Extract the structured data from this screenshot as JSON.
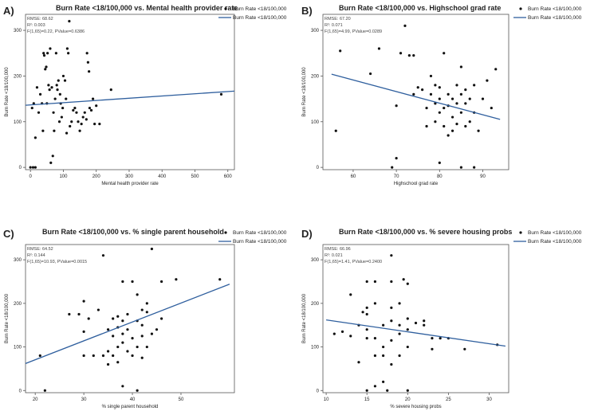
{
  "colors": {
    "point": "#111111",
    "fit": "#2f5f9e",
    "axis": "#555555",
    "text": "#222222"
  },
  "chart_data": [
    {
      "panel_label": "A)",
      "type": "scatter",
      "title": "Burn Rate <18/100,000 vs. Mental health provider rate",
      "xlabel": "Mental health provider rate",
      "ylabel": "Burn Rate <18/100,000",
      "xlim": [
        -15,
        620
      ],
      "ylim": [
        -5,
        335
      ],
      "xticks": [
        0,
        100,
        200,
        300,
        400,
        500,
        600
      ],
      "yticks": [
        0,
        100,
        200,
        300
      ],
      "stats": [
        "RMSE: 68.62",
        "R²: 0.003",
        "F(1,65)=0.22, PValue=0.6386"
      ],
      "legend": {
        "points": "Burn Rate <18/100,000",
        "line": "Burn Rate <18/100,000"
      },
      "fit": {
        "x": [
          -15,
          620
        ],
        "y": [
          136,
          167
        ]
      },
      "points": [
        [
          0,
          0
        ],
        [
          8,
          0
        ],
        [
          15,
          0
        ],
        [
          5,
          130
        ],
        [
          10,
          140
        ],
        [
          15,
          65
        ],
        [
          20,
          175
        ],
        [
          25,
          120
        ],
        [
          30,
          160
        ],
        [
          35,
          140
        ],
        [
          38,
          80
        ],
        [
          40,
          250
        ],
        [
          42,
          245
        ],
        [
          45,
          215
        ],
        [
          48,
          220
        ],
        [
          50,
          140
        ],
        [
          52,
          250
        ],
        [
          55,
          180
        ],
        [
          58,
          170
        ],
        [
          60,
          260
        ],
        [
          62,
          10
        ],
        [
          65,
          175
        ],
        [
          68,
          25
        ],
        [
          70,
          120
        ],
        [
          72,
          80
        ],
        [
          75,
          150
        ],
        [
          78,
          250
        ],
        [
          80,
          180
        ],
        [
          82,
          170
        ],
        [
          85,
          190
        ],
        [
          88,
          100
        ],
        [
          90,
          160
        ],
        [
          92,
          140
        ],
        [
          95,
          110
        ],
        [
          98,
          130
        ],
        [
          100,
          200
        ],
        [
          105,
          190
        ],
        [
          108,
          150
        ],
        [
          110,
          75
        ],
        [
          112,
          260
        ],
        [
          115,
          250
        ],
        [
          118,
          320
        ],
        [
          120,
          90
        ],
        [
          125,
          100
        ],
        [
          130,
          125
        ],
        [
          135,
          130
        ],
        [
          140,
          120
        ],
        [
          145,
          100
        ],
        [
          150,
          80
        ],
        [
          155,
          95
        ],
        [
          160,
          110
        ],
        [
          165,
          120
        ],
        [
          170,
          105
        ],
        [
          172,
          250
        ],
        [
          175,
          230
        ],
        [
          178,
          210
        ],
        [
          180,
          130
        ],
        [
          185,
          125
        ],
        [
          190,
          150
        ],
        [
          195,
          95
        ],
        [
          200,
          135
        ],
        [
          210,
          95
        ],
        [
          245,
          170
        ],
        [
          580,
          160
        ]
      ]
    },
    {
      "panel_label": "B)",
      "type": "scatter",
      "title": "Burn Rate <18/100,000 vs. Highschool grad rate",
      "xlabel": "Highschool grad rate",
      "ylabel": "Burn Rate <18/100,000",
      "xlim": [
        53,
        96
      ],
      "ylim": [
        -5,
        335
      ],
      "xticks": [
        60,
        70,
        80,
        90
      ],
      "yticks": [
        0,
        100,
        200,
        300
      ],
      "stats": [
        "RMSE: 67.20",
        "R²: 0.071",
        "F(1,65)=4.99, PValue=0.0289"
      ],
      "legend": {
        "points": "Burn Rate <18/100,000",
        "line": "Burn Rate <18/100,000"
      },
      "fit": {
        "x": [
          55,
          94
        ],
        "y": [
          204,
          105
        ]
      },
      "points": [
        [
          56,
          80
        ],
        [
          57,
          255
        ],
        [
          64,
          205
        ],
        [
          66,
          260
        ],
        [
          69,
          0
        ],
        [
          70,
          20
        ],
        [
          70,
          135
        ],
        [
          71,
          250
        ],
        [
          72,
          310
        ],
        [
          73,
          245
        ],
        [
          74,
          245
        ],
        [
          74,
          160
        ],
        [
          75,
          175
        ],
        [
          76,
          170
        ],
        [
          77,
          130
        ],
        [
          77,
          90
        ],
        [
          78,
          200
        ],
        [
          78,
          160
        ],
        [
          79,
          140
        ],
        [
          79,
          180
        ],
        [
          79,
          100
        ],
        [
          80,
          175
        ],
        [
          80,
          150
        ],
        [
          80,
          120
        ],
        [
          80,
          10
        ],
        [
          81,
          250
        ],
        [
          81,
          130
        ],
        [
          81,
          90
        ],
        [
          82,
          160
        ],
        [
          82,
          135
        ],
        [
          82,
          70
        ],
        [
          83,
          150
        ],
        [
          83,
          110
        ],
        [
          83,
          80
        ],
        [
          84,
          180
        ],
        [
          84,
          140
        ],
        [
          84,
          95
        ],
        [
          85,
          220
        ],
        [
          85,
          160
        ],
        [
          85,
          120
        ],
        [
          85,
          0
        ],
        [
          86,
          170
        ],
        [
          86,
          140
        ],
        [
          86,
          90
        ],
        [
          87,
          150
        ],
        [
          87,
          100
        ],
        [
          88,
          180
        ],
        [
          88,
          120
        ],
        [
          88,
          0
        ],
        [
          89,
          80
        ],
        [
          90,
          150
        ],
        [
          91,
          190
        ],
        [
          92,
          130
        ],
        [
          93,
          215
        ]
      ]
    },
    {
      "panel_label": "C)",
      "type": "scatter",
      "title": "Burn Rate <18/100,000 vs. % single parent household",
      "xlabel": "% single parent household",
      "ylabel": "Burn Rate <18/100,000",
      "xlim": [
        18,
        61
      ],
      "ylim": [
        -5,
        335
      ],
      "xticks": [
        20,
        30,
        40,
        50
      ],
      "yticks": [
        0,
        100,
        200,
        300
      ],
      "stats": [
        "RMSE: 64.52",
        "R²: 0.144",
        "F(1,65)=10.93, PValue=0.0015"
      ],
      "legend": {
        "points": "Burn Rate <18/100,000",
        "line": "Burn Rate <18/100,000"
      },
      "fit": {
        "x": [
          18,
          60
        ],
        "y": [
          62,
          244
        ]
      },
      "points": [
        [
          21,
          80
        ],
        [
          22,
          0
        ],
        [
          27,
          175
        ],
        [
          29,
          175
        ],
        [
          30,
          205
        ],
        [
          30,
          135
        ],
        [
          30,
          80
        ],
        [
          31,
          165
        ],
        [
          32,
          80
        ],
        [
          33,
          185
        ],
        [
          34,
          310
        ],
        [
          34,
          80
        ],
        [
          35,
          140
        ],
        [
          35,
          90
        ],
        [
          35,
          60
        ],
        [
          36,
          165
        ],
        [
          36,
          125
        ],
        [
          36,
          80
        ],
        [
          37,
          170
        ],
        [
          37,
          145
        ],
        [
          37,
          100
        ],
        [
          37,
          65
        ],
        [
          38,
          160
        ],
        [
          38,
          130
        ],
        [
          38,
          110
        ],
        [
          38,
          250
        ],
        [
          38,
          10
        ],
        [
          39,
          140
        ],
        [
          39,
          175
        ],
        [
          39,
          90
        ],
        [
          40,
          250
        ],
        [
          40,
          120
        ],
        [
          40,
          80
        ],
        [
          41,
          220
        ],
        [
          41,
          160
        ],
        [
          41,
          100
        ],
        [
          41,
          0
        ],
        [
          42,
          185
        ],
        [
          42,
          150
        ],
        [
          42,
          125
        ],
        [
          42,
          75
        ],
        [
          43,
          180
        ],
        [
          43,
          200
        ],
        [
          43,
          100
        ],
        [
          44,
          325
        ],
        [
          44,
          130
        ],
        [
          45,
          140
        ],
        [
          46,
          250
        ],
        [
          46,
          165
        ],
        [
          49,
          255
        ],
        [
          58,
          255
        ]
      ]
    },
    {
      "panel_label": "D)",
      "type": "scatter",
      "title": "Burn Rate <18/100,000 vs. % severe housing probs",
      "xlabel": "% severe housing probs",
      "ylabel": "Burn Rate <18/100,000",
      "xlim": [
        9.6,
        32.4
      ],
      "ylim": [
        -5,
        335
      ],
      "xticks": [
        10,
        15,
        20,
        25,
        30
      ],
      "yticks": [
        0,
        100,
        200,
        300
      ],
      "stats": [
        "RMSE: 66.96",
        "R²: 0.021",
        "F(1,65)=1.41, PValue=0.2400"
      ],
      "legend": {
        "points": "Burn Rate <18/100,000",
        "line": "Burn Rate <18/100,000"
      },
      "fit": {
        "x": [
          10,
          32
        ],
        "y": [
          162,
          102
        ]
      },
      "points": [
        [
          11,
          130
        ],
        [
          12,
          135
        ],
        [
          13,
          220
        ],
        [
          13,
          125
        ],
        [
          14,
          150
        ],
        [
          14,
          65
        ],
        [
          14.5,
          180
        ],
        [
          15,
          250
        ],
        [
          15,
          190
        ],
        [
          15,
          175
        ],
        [
          15,
          140
        ],
        [
          15,
          120
        ],
        [
          15,
          0
        ],
        [
          16,
          250
        ],
        [
          16,
          200
        ],
        [
          16,
          120
        ],
        [
          16,
          80
        ],
        [
          16,
          10
        ],
        [
          17,
          150
        ],
        [
          17,
          100
        ],
        [
          17,
          80
        ],
        [
          17,
          20
        ],
        [
          17.5,
          0
        ],
        [
          18,
          310
        ],
        [
          18,
          250
        ],
        [
          18,
          190
        ],
        [
          18,
          160
        ],
        [
          18,
          115
        ],
        [
          18,
          60
        ],
        [
          19,
          200
        ],
        [
          19,
          150
        ],
        [
          19,
          130
        ],
        [
          19,
          80
        ],
        [
          19.5,
          255
        ],
        [
          20,
          245
        ],
        [
          20,
          165
        ],
        [
          20,
          140
        ],
        [
          20,
          100
        ],
        [
          20,
          0
        ],
        [
          21,
          155
        ],
        [
          22,
          150
        ],
        [
          22,
          160
        ],
        [
          23,
          95
        ],
        [
          23,
          120
        ],
        [
          24,
          120
        ],
        [
          25,
          120
        ],
        [
          27,
          95
        ],
        [
          31,
          105
        ]
      ]
    }
  ]
}
